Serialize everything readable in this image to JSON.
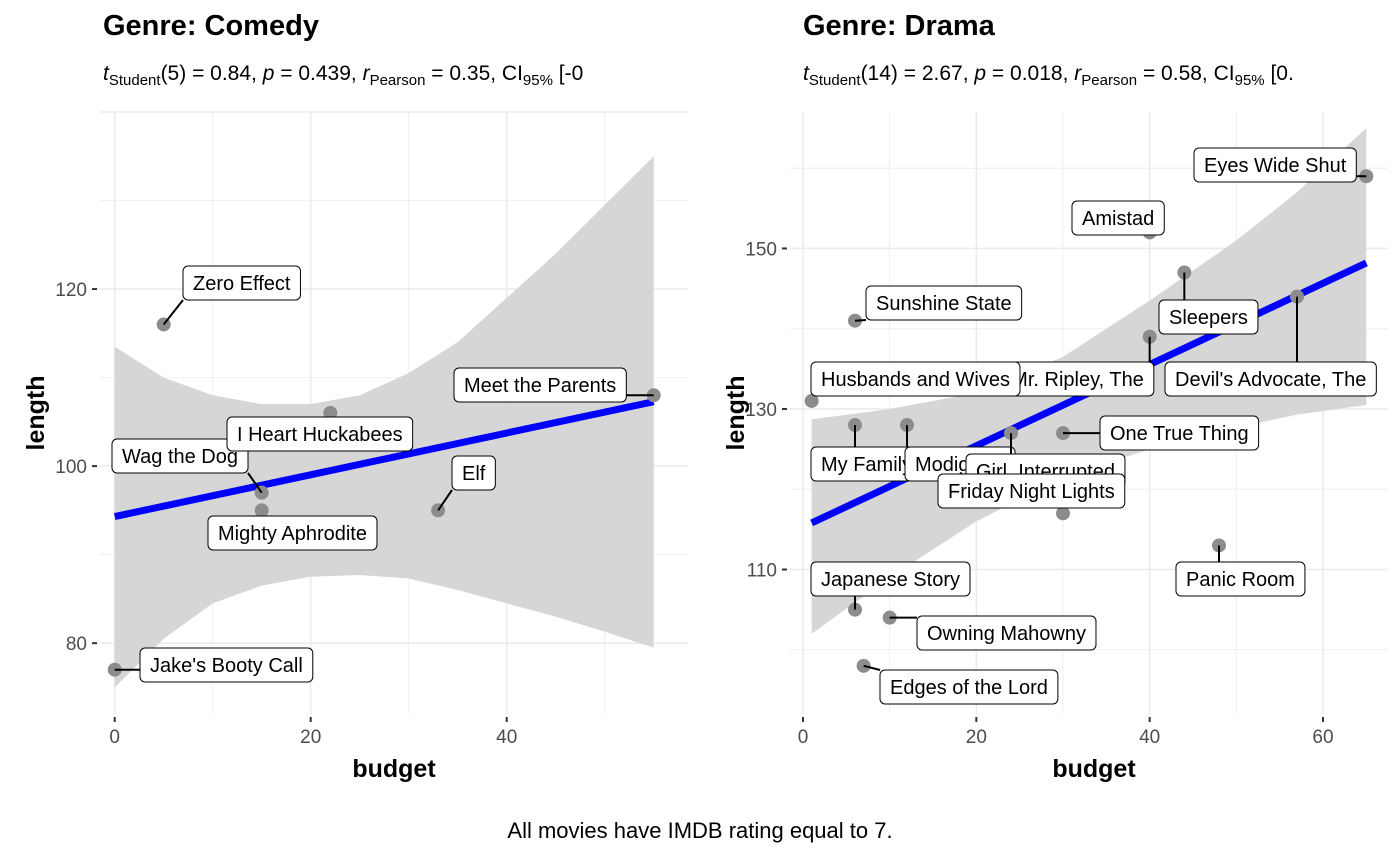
{
  "caption": "All movies have IMDB rating equal to 7.",
  "panels": [
    {
      "title": "Genre: Comedy",
      "subtitle": {
        "t_sym": "t",
        "t_sub": "Student",
        "df": "(5)",
        "t_val": " = 0.84, ",
        "p_sym": "p",
        "p_val": " = 0.439, ",
        "r_sym": "r",
        "r_sub": "Pearson",
        "r_val": " = 0.35, ",
        "ci_sym": "CI",
        "ci_sub": "95%",
        "ci_val": " [-0"
      }
    },
    {
      "title": "Genre: Drama",
      "subtitle": {
        "t_sym": "t",
        "t_sub": "Student",
        "df": "(14)",
        "t_val": " = 2.67, ",
        "p_sym": "p",
        "p_val": " = 0.018, ",
        "r_sym": "r",
        "r_sub": "Pearson",
        "r_val": " = 0.58, ",
        "ci_sym": "CI",
        "ci_sub": "95%",
        "ci_val": " [0."
      }
    }
  ],
  "colors": {
    "fit_line": "#0000ff",
    "ribbon": "#d4d4d4",
    "point": "#8c8c8c",
    "grid": "#ebebeb"
  },
  "chart_data": [
    {
      "type": "scatter",
      "title": "Genre: Comedy",
      "xlabel": "budget",
      "ylabel": "length",
      "xlim": [
        -1.5,
        58.5
      ],
      "ylim": [
        72,
        140
      ],
      "xticks": [
        0,
        20,
        40
      ],
      "yticks": [
        80,
        100,
        120
      ],
      "grid": true,
      "fit": {
        "intercept": 94.3,
        "slope": 0.236,
        "x_range": [
          0,
          55
        ]
      },
      "ribbon": [
        {
          "x": 0,
          "lo": 75,
          "hi": 113.5
        },
        {
          "x": 5,
          "lo": 80.5,
          "hi": 110
        },
        {
          "x": 10,
          "lo": 84.5,
          "hi": 108
        },
        {
          "x": 15,
          "lo": 86.5,
          "hi": 107
        },
        {
          "x": 20,
          "lo": 87.5,
          "hi": 107
        },
        {
          "x": 25,
          "lo": 87.7,
          "hi": 108
        },
        {
          "x": 30,
          "lo": 87.3,
          "hi": 110.5
        },
        {
          "x": 35,
          "lo": 86,
          "hi": 114
        },
        {
          "x": 40,
          "lo": 84.5,
          "hi": 119
        },
        {
          "x": 45,
          "lo": 83,
          "hi": 124
        },
        {
          "x": 50,
          "lo": 81.3,
          "hi": 129.5
        },
        {
          "x": 55,
          "lo": 79.5,
          "hi": 135
        }
      ],
      "points": [
        {
          "x": 0,
          "y": 77,
          "label": "Jake's Booty Call"
        },
        {
          "x": 5,
          "y": 116,
          "label": "Zero Effect"
        },
        {
          "x": 15,
          "y": 97,
          "label": "Wag the Dog"
        },
        {
          "x": 15,
          "y": 95,
          "label": "Mighty Aphrodite"
        },
        {
          "x": 22,
          "y": 106,
          "label": "I Heart Huckabees"
        },
        {
          "x": 33,
          "y": 95,
          "label": "Elf"
        },
        {
          "x": 55,
          "y": 108,
          "label": "Meet the Parents"
        }
      ]
    },
    {
      "type": "scatter",
      "title": "Genre: Drama",
      "xlabel": "budget",
      "ylabel": "length",
      "xlim": [
        -1.5,
        67.5
      ],
      "ylim": [
        92,
        167
      ],
      "xticks": [
        0,
        20,
        40,
        60
      ],
      "yticks": [
        110,
        130,
        150
      ],
      "grid": true,
      "fit": {
        "intercept": 115.3,
        "slope": 0.506,
        "x_range": [
          1,
          65
        ]
      },
      "ribbon": [
        {
          "x": 1,
          "lo": 102,
          "hi": 128.7
        },
        {
          "x": 10,
          "lo": 109,
          "hi": 130
        },
        {
          "x": 20,
          "lo": 116,
          "hi": 132
        },
        {
          "x": 30,
          "lo": 121.5,
          "hi": 136.5
        },
        {
          "x": 40,
          "lo": 125,
          "hi": 143.5
        },
        {
          "x": 50,
          "lo": 127.7,
          "hi": 151
        },
        {
          "x": 57,
          "lo": 129.3,
          "hi": 157
        },
        {
          "x": 65,
          "lo": 130.5,
          "hi": 165
        }
      ],
      "points": [
        {
          "x": 65,
          "y": 159,
          "label": "Eyes Wide Shut"
        },
        {
          "x": 40,
          "y": 152,
          "label": "Amistad"
        },
        {
          "x": 44,
          "y": 147,
          "label": "Sleepers"
        },
        {
          "x": 6,
          "y": 141,
          "label": "Sunshine State"
        },
        {
          "x": 40,
          "y": 139,
          "label": "Talented Mr. Ripley, The"
        },
        {
          "x": 57,
          "y": 144,
          "label": "Devil's Advocate, The"
        },
        {
          "x": 1,
          "y": 131,
          "label": "Husbands and Wives"
        },
        {
          "x": 30,
          "y": 127,
          "label": "One True Thing"
        },
        {
          "x": 6,
          "y": 128,
          "label": "My Family"
        },
        {
          "x": 12,
          "y": 128,
          "label": "Modigliani"
        },
        {
          "x": 24,
          "y": 127,
          "label": "Girl, Interrupted"
        },
        {
          "x": 30,
          "y": 117,
          "label": "Friday Night Lights"
        },
        {
          "x": 48,
          "y": 113,
          "label": "Panic Room"
        },
        {
          "x": 6,
          "y": 105,
          "label": "Japanese Story"
        },
        {
          "x": 10,
          "y": 104,
          "label": "Owning Mahowny"
        },
        {
          "x": 7,
          "y": 98,
          "label": "Edges of the Lord"
        }
      ]
    }
  ]
}
